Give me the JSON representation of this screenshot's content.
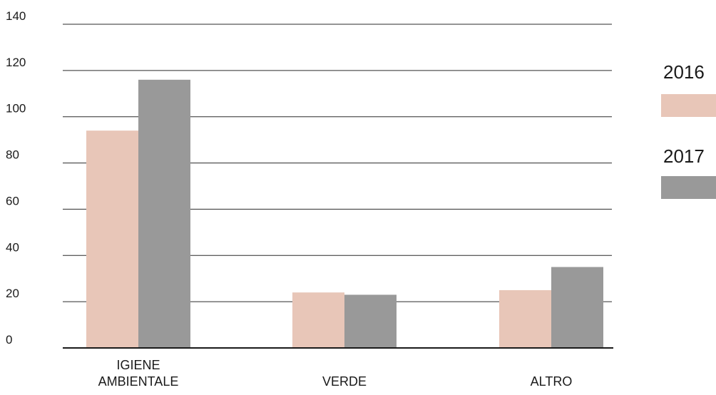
{
  "chart_data": {
    "type": "bar",
    "title": "",
    "xlabel": "",
    "ylabel": "",
    "categories": [
      "IGIENE AMBIENTALE",
      "VERDE",
      "ALTRO"
    ],
    "category_lines": [
      [
        "IGIENE",
        "AMBIENTALE"
      ],
      [
        "VERDE"
      ],
      [
        "ALTRO"
      ]
    ],
    "series": [
      {
        "name": "2016",
        "values": [
          94,
          24,
          25
        ],
        "color": "#e8c6b8"
      },
      {
        "name": "2017",
        "values": [
          116,
          23,
          35
        ],
        "color": "#999999"
      }
    ],
    "ylim": [
      0,
      140
    ],
    "yticks": [
      0,
      20,
      40,
      60,
      80,
      100,
      120,
      140
    ],
    "ytick_labels": [
      "0",
      "20",
      "40",
      "60",
      "80",
      "100",
      "120",
      "140"
    ],
    "grid": true,
    "legend_position": "right"
  }
}
